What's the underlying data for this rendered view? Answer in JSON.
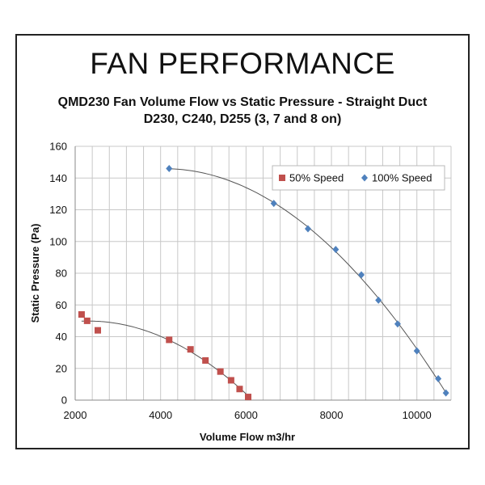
{
  "chart_data": {
    "type": "scatter",
    "heading": "FAN PERFORMANCE",
    "title": "QMD230 Fan Volume Flow vs Static Pressure - Straight Duct",
    "subtitle": "D230, C240, D255 (3, 7 and 8 on)",
    "xlabel": "Volume Flow m3/hr",
    "ylabel": "Static Pressure (Pa)",
    "xlim": [
      2000,
      10800
    ],
    "ylim": [
      0,
      160
    ],
    "xticks": [
      2000,
      4000,
      6000,
      8000,
      10000
    ],
    "yticks": [
      0,
      20,
      40,
      60,
      80,
      100,
      120,
      140,
      160
    ],
    "grid": true,
    "legend_position": "top-right",
    "trendlines": true,
    "series": [
      {
        "name": "50% Speed",
        "marker": "square",
        "color": "#c0504d",
        "points": [
          [
            2150,
            54
          ],
          [
            2280,
            50
          ],
          [
            2530,
            44
          ],
          [
            4200,
            38
          ],
          [
            4700,
            32
          ],
          [
            5050,
            25
          ],
          [
            5400,
            18
          ],
          [
            5650,
            12.5
          ],
          [
            5850,
            7
          ],
          [
            6050,
            2
          ]
        ]
      },
      {
        "name": "100% Speed",
        "marker": "diamond",
        "color": "#4f81bd",
        "points": [
          [
            4200,
            146
          ],
          [
            6650,
            124
          ],
          [
            7450,
            108
          ],
          [
            8100,
            95
          ],
          [
            8700,
            79
          ],
          [
            9100,
            63
          ],
          [
            9550,
            48
          ],
          [
            10000,
            31
          ],
          [
            10500,
            13.5
          ],
          [
            10680,
            4.5
          ]
        ]
      }
    ]
  }
}
